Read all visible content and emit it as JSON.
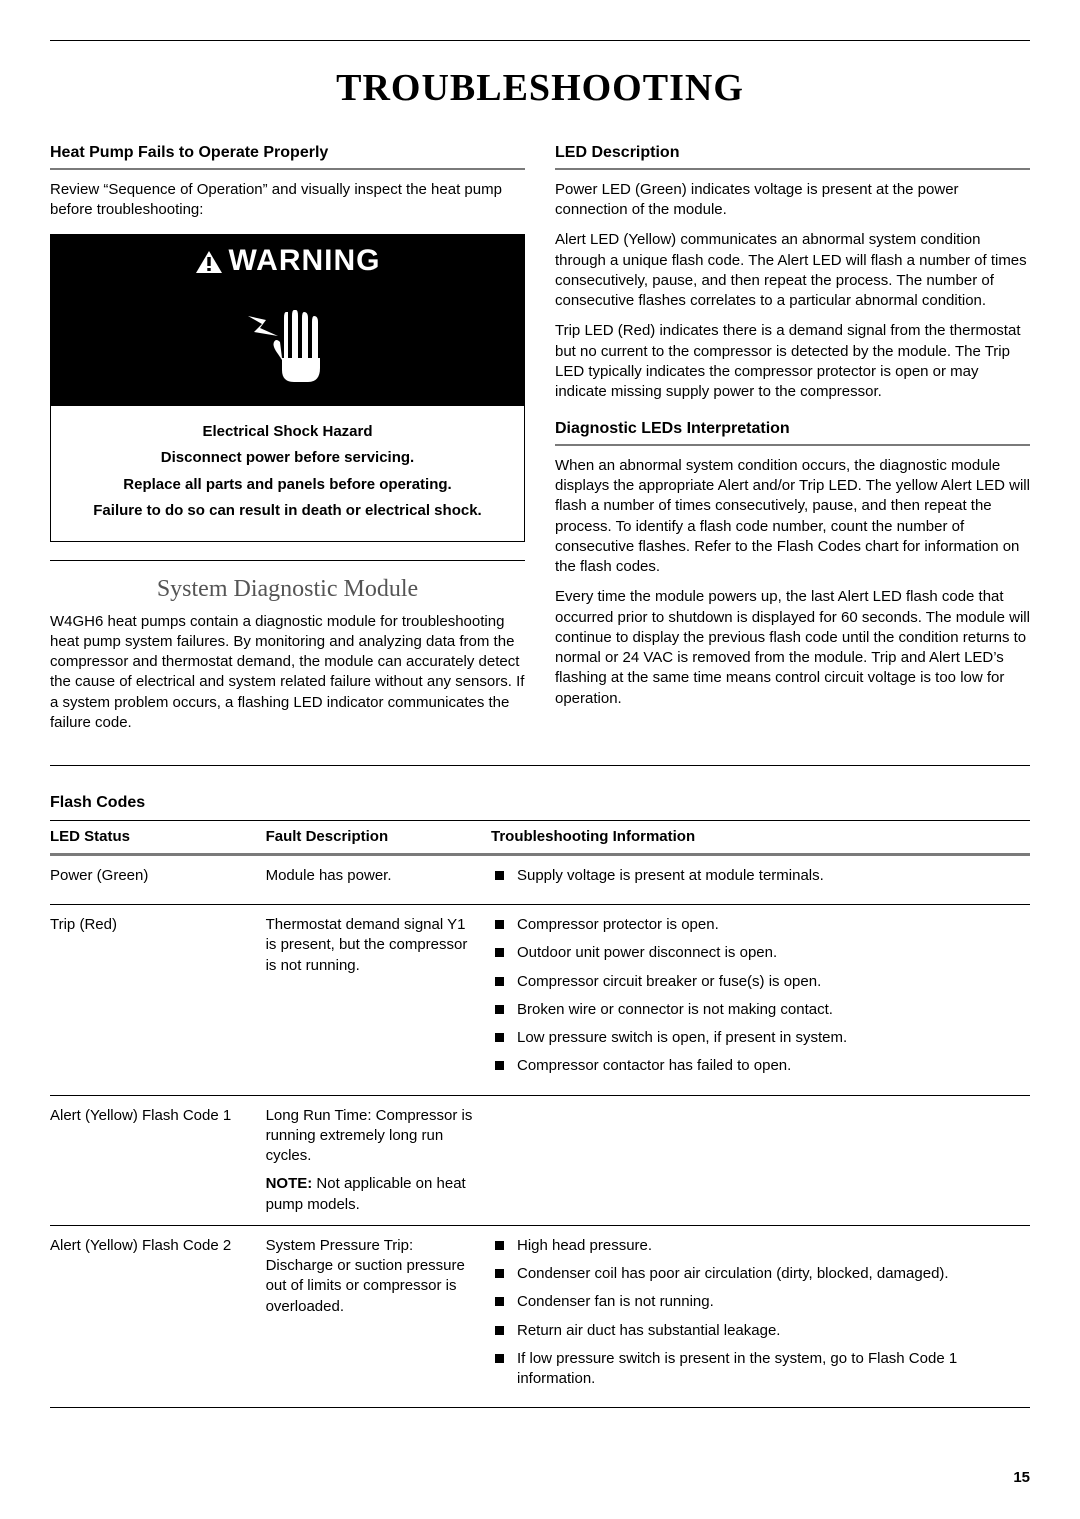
{
  "page": {
    "title": "TROUBLESHOOTING",
    "number": "15"
  },
  "left": {
    "heading1": "Heat Pump Fails to Operate Properly",
    "intro": "Review “Sequence of Operation” and visually inspect the heat pump before troubleshooting:",
    "warning": {
      "header": "WARNING",
      "line1": "Electrical Shock Hazard",
      "line2": "Disconnect power before servicing.",
      "line3": "Replace all parts and panels before operating.",
      "line4": "Failure to do so can result in death or electrical shock."
    },
    "subtitle": "System Diagnostic Module",
    "body1": "W4GH6 heat pumps contain a diagnostic module for troubleshooting heat pump system failures. By monitoring and analyzing data from the compressor and thermostat demand, the module can accurately detect the cause of electrical and system related failure without any sensors. If a system problem occurs, a flashing LED indicator communicates the failure code."
  },
  "right": {
    "heading1": "LED Description",
    "p1": "Power LED (Green) indicates voltage is present at the power connection of the module.",
    "p2": "Alert LED (Yellow) communicates an abnormal system condition through a unique flash code. The Alert LED will flash a number of times consecutively, pause, and then repeat the process. The number of consecutive flashes correlates to a particular abnormal condition.",
    "p3": "Trip LED (Red) indicates there is a demand signal from the thermostat but no current to the compressor is detected by the module. The Trip LED typically indicates the compressor protector is open or may indicate missing supply power to the compressor.",
    "heading2": "Diagnostic LEDs Interpretation",
    "p4": "When an abnormal system condition occurs, the diagnostic module displays the appropriate Alert and/or Trip LED. The yellow Alert LED will flash a number of times consecutively, pause, and then repeat the process. To identify a flash code number, count the number of consecutive flashes. Refer to the Flash Codes chart for information on the flash codes.",
    "p5": "Every time the module powers up, the last Alert LED flash code that occurred prior to shutdown is displayed for 60 seconds. The module will continue to display the previous flash code until the condition returns to normal or 24 VAC is removed from the module. Trip and Alert LED’s flashing at the same time means control circuit voltage is too low for operation."
  },
  "flash": {
    "title": "Flash Codes",
    "columns": [
      "LED Status",
      "Fault Description",
      "Troubleshooting Information"
    ],
    "rows": [
      {
        "led": "Power (Green)",
        "fault": "Module has power.",
        "trouble": [
          "Supply voltage is present at module terminals."
        ]
      },
      {
        "led": "Trip (Red)",
        "fault": "Thermostat demand signal Y1 is present, but the compressor is not running.",
        "trouble": [
          "Compressor protector is open.",
          "Outdoor unit power disconnect is open.",
          "Compressor circuit breaker or fuse(s) is open.",
          "Broken wire or connector is not making contact.",
          "Low pressure switch is open, if present in system.",
          "Compressor contactor has failed to open."
        ]
      },
      {
        "led": "Alert (Yellow) Flash Code 1",
        "fault": "Long Run Time: Compressor is running extremely long run cycles.",
        "note_label": "NOTE:",
        "note": " Not applicable on heat pump models.",
        "trouble": []
      },
      {
        "led": "Alert (Yellow) Flash Code 2",
        "fault": "System Pressure Trip: Discharge or suction pressure out of limits or compressor is overloaded.",
        "trouble": [
          "High head pressure.",
          "Condenser coil has poor air circulation (dirty, blocked, damaged).",
          "Condenser fan is not running.",
          "Return air duct has substantial leakage.",
          "If low pressure switch is present in the system, go to Flash Code 1 information."
        ]
      }
    ]
  }
}
